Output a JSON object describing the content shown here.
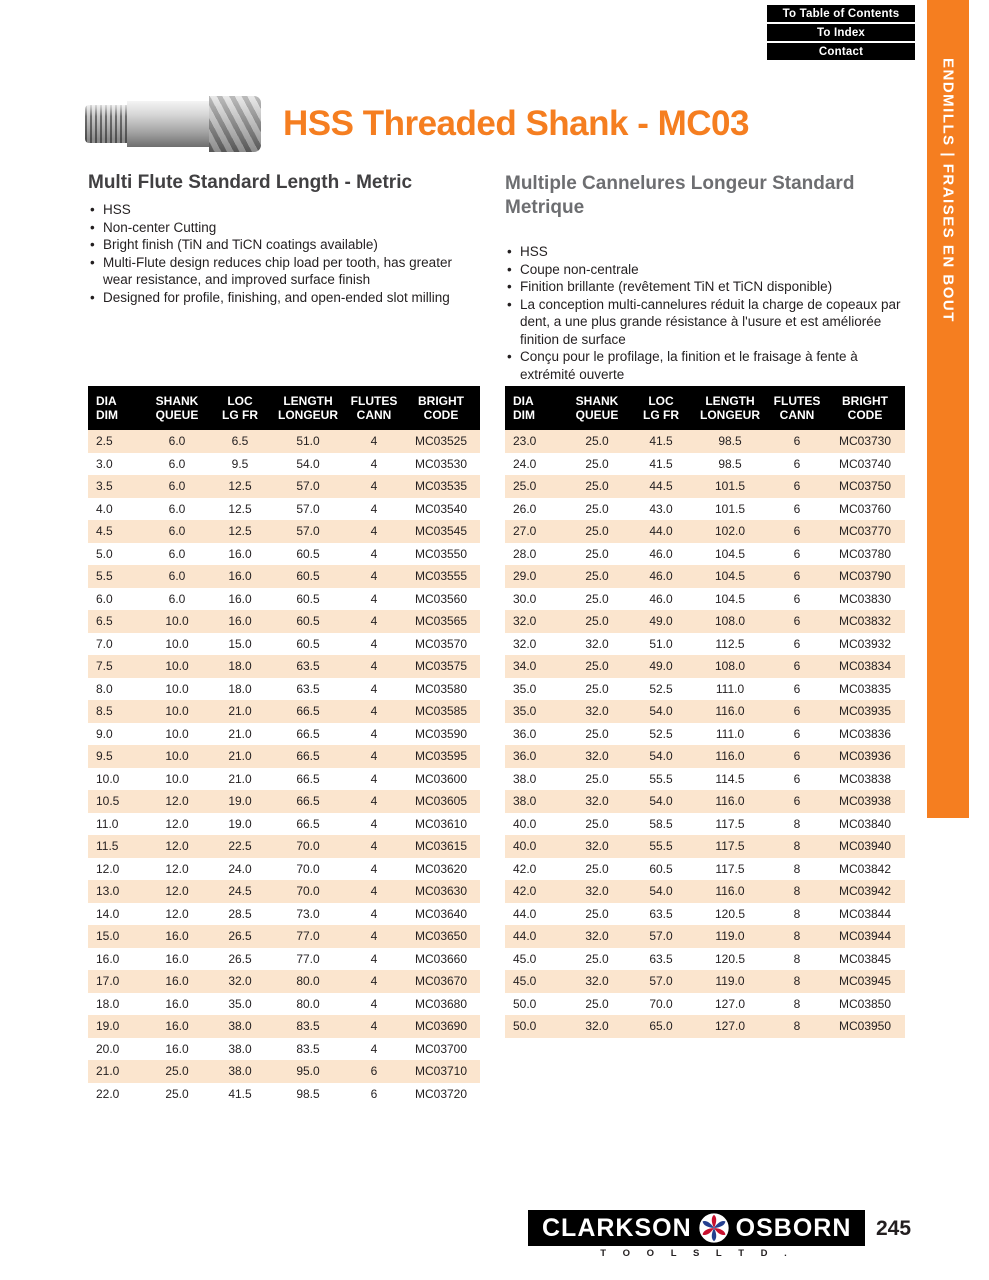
{
  "nav": {
    "toc": "To Table of Contents",
    "index": "To Index",
    "contact": "Contact"
  },
  "sidebar": {
    "label": "ENDMILLS | FRAISES EN BOUT"
  },
  "header": {
    "title": "HSS Threaded Shank - MC03"
  },
  "sections": {
    "english": {
      "title": "Multi Flute Standard Length - Metric",
      "bullets": [
        "HSS",
        "Non-center Cutting",
        "Bright finish (TiN and TiCN coatings available)",
        "Multi-Flute design reduces chip load per tooth, has greater wear resistance, and improved surface finish",
        "Designed for profile, finishing, and open-ended slot milling"
      ]
    },
    "french": {
      "title": "Multiple Cannelures Longeur Standard Metrique",
      "bullets": [
        "HSS",
        "Coupe non-centrale",
        "Finition brillante (revêtement TiN et TiCN disponible)",
        "La conception multi-cannelures réduit la charge de copeaux par dent, a une plus grande résistance à l'usure et est améliorée finition de surface",
        "Conçu pour le profilage, la finition et le fraisage à fente à extrémité ouverte"
      ]
    }
  },
  "table": {
    "headers": [
      [
        "DIA",
        "DIM"
      ],
      [
        "SHANK",
        "QUEUE"
      ],
      [
        "LOC",
        "LG FR"
      ],
      [
        "LENGTH",
        "LONGEUR"
      ],
      [
        "FLUTES",
        "CANN"
      ],
      [
        "BRIGHT",
        "CODE"
      ]
    ],
    "left_rows": [
      [
        "2.5",
        "6.0",
        "6.5",
        "51.0",
        "4",
        "MC03525"
      ],
      [
        "3.0",
        "6.0",
        "9.5",
        "54.0",
        "4",
        "MC03530"
      ],
      [
        "3.5",
        "6.0",
        "12.5",
        "57.0",
        "4",
        "MC03535"
      ],
      [
        "4.0",
        "6.0",
        "12.5",
        "57.0",
        "4",
        "MC03540"
      ],
      [
        "4.5",
        "6.0",
        "12.5",
        "57.0",
        "4",
        "MC03545"
      ],
      [
        "5.0",
        "6.0",
        "16.0",
        "60.5",
        "4",
        "MC03550"
      ],
      [
        "5.5",
        "6.0",
        "16.0",
        "60.5",
        "4",
        "MC03555"
      ],
      [
        "6.0",
        "6.0",
        "16.0",
        "60.5",
        "4",
        "MC03560"
      ],
      [
        "6.5",
        "10.0",
        "16.0",
        "60.5",
        "4",
        "MC03565"
      ],
      [
        "7.0",
        "10.0",
        "15.0",
        "60.5",
        "4",
        "MC03570"
      ],
      [
        "7.5",
        "10.0",
        "18.0",
        "63.5",
        "4",
        "MC03575"
      ],
      [
        "8.0",
        "10.0",
        "18.0",
        "63.5",
        "4",
        "MC03580"
      ],
      [
        "8.5",
        "10.0",
        "21.0",
        "66.5",
        "4",
        "MC03585"
      ],
      [
        "9.0",
        "10.0",
        "21.0",
        "66.5",
        "4",
        "MC03590"
      ],
      [
        "9.5",
        "10.0",
        "21.0",
        "66.5",
        "4",
        "MC03595"
      ],
      [
        "10.0",
        "10.0",
        "21.0",
        "66.5",
        "4",
        "MC03600"
      ],
      [
        "10.5",
        "12.0",
        "19.0",
        "66.5",
        "4",
        "MC03605"
      ],
      [
        "11.0",
        "12.0",
        "19.0",
        "66.5",
        "4",
        "MC03610"
      ],
      [
        "11.5",
        "12.0",
        "22.5",
        "70.0",
        "4",
        "MC03615"
      ],
      [
        "12.0",
        "12.0",
        "24.0",
        "70.0",
        "4",
        "MC03620"
      ],
      [
        "13.0",
        "12.0",
        "24.5",
        "70.0",
        "4",
        "MC03630"
      ],
      [
        "14.0",
        "12.0",
        "28.5",
        "73.0",
        "4",
        "MC03640"
      ],
      [
        "15.0",
        "16.0",
        "26.5",
        "77.0",
        "4",
        "MC03650"
      ],
      [
        "16.0",
        "16.0",
        "26.5",
        "77.0",
        "4",
        "MC03660"
      ],
      [
        "17.0",
        "16.0",
        "32.0",
        "80.0",
        "4",
        "MC03670"
      ],
      [
        "18.0",
        "16.0",
        "35.0",
        "80.0",
        "4",
        "MC03680"
      ],
      [
        "19.0",
        "16.0",
        "38.0",
        "83.5",
        "4",
        "MC03690"
      ],
      [
        "20.0",
        "16.0",
        "38.0",
        "83.5",
        "4",
        "MC03700"
      ],
      [
        "21.0",
        "25.0",
        "38.0",
        "95.0",
        "6",
        "MC03710"
      ],
      [
        "22.0",
        "25.0",
        "41.5",
        "98.5",
        "6",
        "MC03720"
      ]
    ],
    "right_rows": [
      [
        "23.0",
        "25.0",
        "41.5",
        "98.5",
        "6",
        "MC03730"
      ],
      [
        "24.0",
        "25.0",
        "41.5",
        "98.5",
        "6",
        "MC03740"
      ],
      [
        "25.0",
        "25.0",
        "44.5",
        "101.5",
        "6",
        "MC03750"
      ],
      [
        "26.0",
        "25.0",
        "43.0",
        "101.5",
        "6",
        "MC03760"
      ],
      [
        "27.0",
        "25.0",
        "44.0",
        "102.0",
        "6",
        "MC03770"
      ],
      [
        "28.0",
        "25.0",
        "46.0",
        "104.5",
        "6",
        "MC03780"
      ],
      [
        "29.0",
        "25.0",
        "46.0",
        "104.5",
        "6",
        "MC03790"
      ],
      [
        "30.0",
        "25.0",
        "46.0",
        "104.5",
        "6",
        "MC03830"
      ],
      [
        "32.0",
        "25.0",
        "49.0",
        "108.0",
        "6",
        "MC03832"
      ],
      [
        "32.0",
        "32.0",
        "51.0",
        "112.5",
        "6",
        "MC03932"
      ],
      [
        "34.0",
        "25.0",
        "49.0",
        "108.0",
        "6",
        "MC03834"
      ],
      [
        "35.0",
        "25.0",
        "52.5",
        "111.0",
        "6",
        "MC03835"
      ],
      [
        "35.0",
        "32.0",
        "54.0",
        "116.0",
        "6",
        "MC03935"
      ],
      [
        "36.0",
        "25.0",
        "52.5",
        "111.0",
        "6",
        "MC03836"
      ],
      [
        "36.0",
        "32.0",
        "54.0",
        "116.0",
        "6",
        "MC03936"
      ],
      [
        "38.0",
        "25.0",
        "55.5",
        "114.5",
        "6",
        "MC03838"
      ],
      [
        "38.0",
        "32.0",
        "54.0",
        "116.0",
        "6",
        "MC03938"
      ],
      [
        "40.0",
        "25.0",
        "58.5",
        "117.5",
        "8",
        "MC03840"
      ],
      [
        "40.0",
        "32.0",
        "55.5",
        "117.5",
        "8",
        "MC03940"
      ],
      [
        "42.0",
        "25.0",
        "60.5",
        "117.5",
        "8",
        "MC03842"
      ],
      [
        "42.0",
        "32.0",
        "54.0",
        "116.0",
        "8",
        "MC03942"
      ],
      [
        "44.0",
        "25.0",
        "63.5",
        "120.5",
        "8",
        "MC03844"
      ],
      [
        "44.0",
        "32.0",
        "57.0",
        "119.0",
        "8",
        "MC03944"
      ],
      [
        "45.0",
        "25.0",
        "63.5",
        "120.5",
        "8",
        "MC03845"
      ],
      [
        "45.0",
        "32.0",
        "57.0",
        "119.0",
        "8",
        "MC03945"
      ],
      [
        "50.0",
        "25.0",
        "70.0",
        "127.0",
        "8",
        "MC03850"
      ],
      [
        "50.0",
        "32.0",
        "65.0",
        "127.0",
        "8",
        "MC03950"
      ]
    ]
  },
  "footer": {
    "brand_left": "CLARKSON",
    "brand_right": "OSBORN",
    "brand_sub": "T O O L S   L T D .",
    "page_number": "245"
  },
  "colors": {
    "accent": "#F57E20",
    "row_alt": "#FBE5CE",
    "header_bg": "#000000",
    "logo_red": "#C8102E",
    "logo_blue": "#243F8F"
  }
}
